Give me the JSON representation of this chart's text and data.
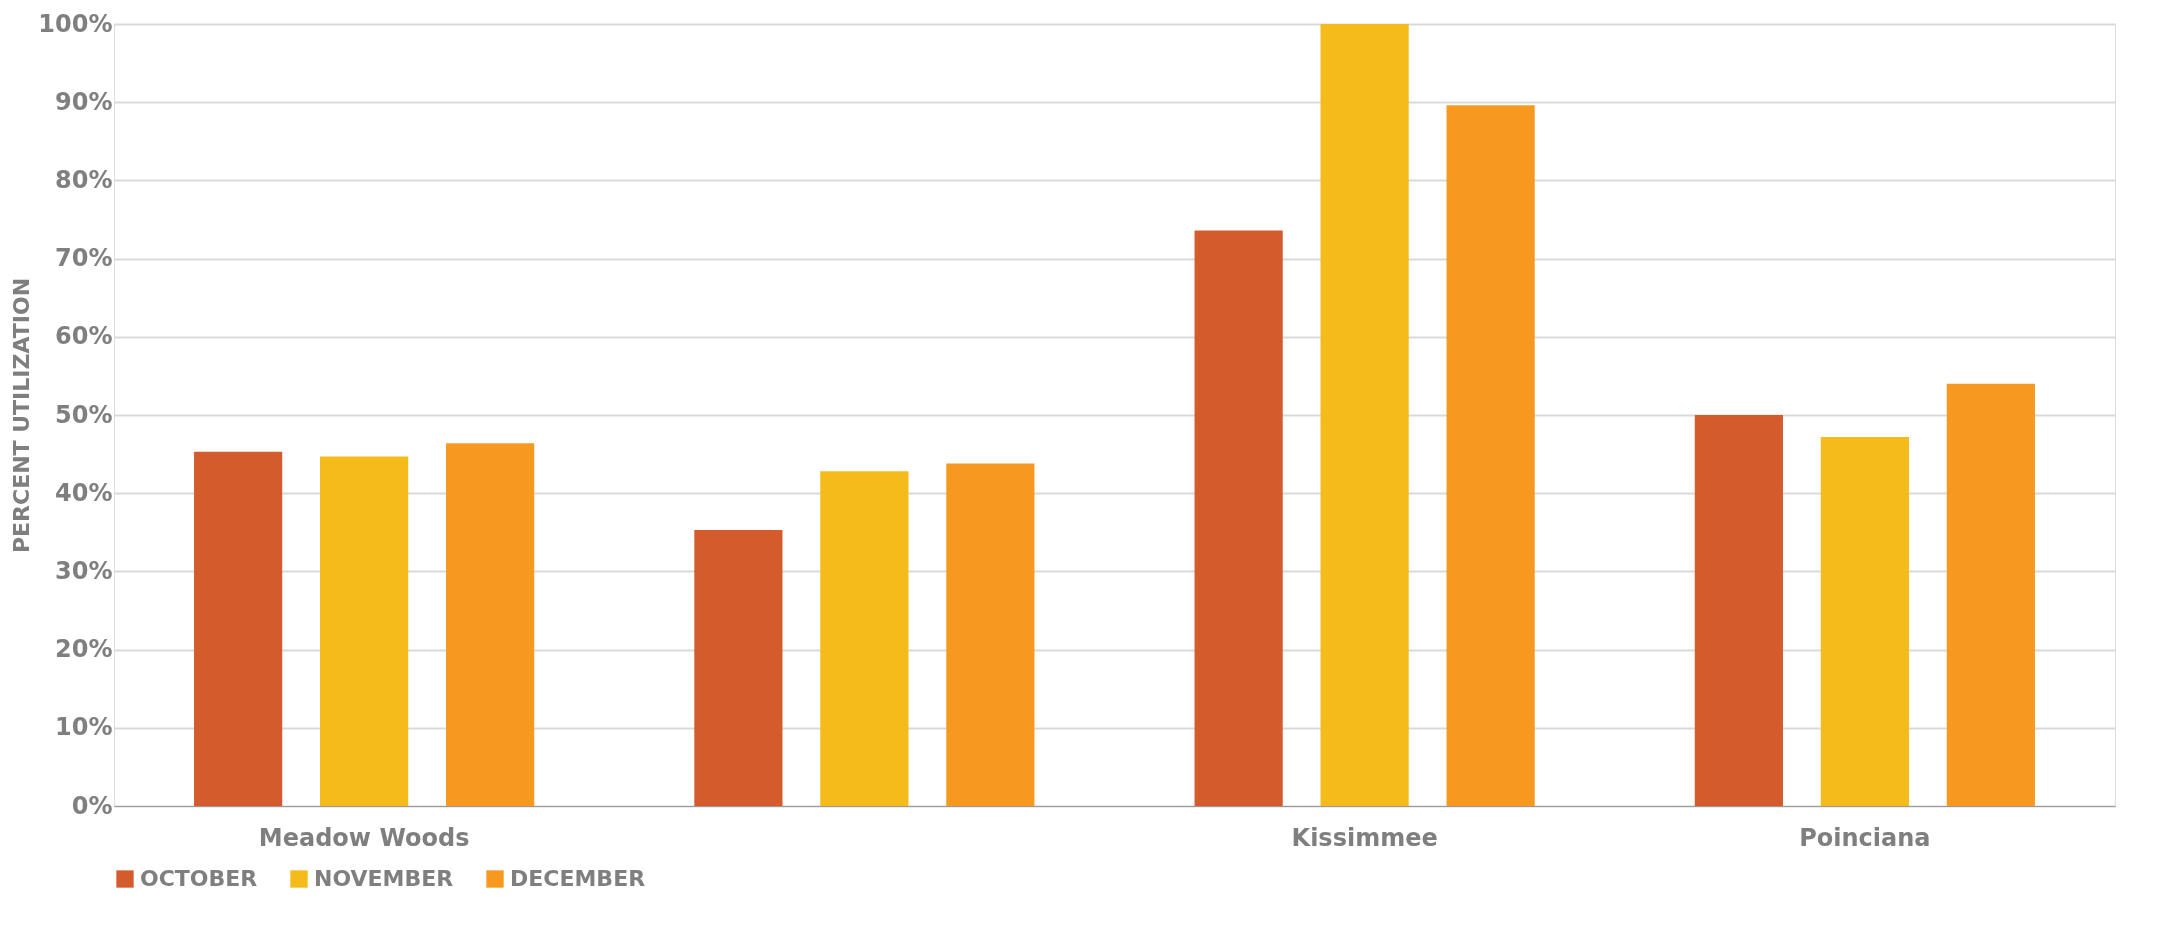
{
  "chart_data": {
    "type": "bar",
    "ylabel": "PERCENT UTILIZATION",
    "categories": [
      "Meadow Woods",
      null,
      "Kissimmee",
      "Poinciana"
    ],
    "series": [
      {
        "name": "OCTOBER",
        "color": "#d45b2c",
        "values": [
          45.3,
          35.3,
          73.6,
          50.0
        ]
      },
      {
        "name": "NOVEMBER",
        "color": "#f5bb1a",
        "values": [
          44.7,
          42.8,
          100,
          47.2
        ]
      },
      {
        "name": "DECEMBER",
        "color": "#f7981f",
        "values": [
          46.4,
          43.8,
          89.6,
          54.0
        ]
      }
    ],
    "ylim": [
      0,
      100
    ],
    "yticks": [
      {
        "value": 0,
        "label": "0%"
      },
      {
        "value": 10,
        "label": "10%"
      },
      {
        "value": 20,
        "label": "20%"
      },
      {
        "value": 30,
        "label": "30%"
      },
      {
        "value": 40,
        "label": "40%"
      },
      {
        "value": 50,
        "label": "50%"
      },
      {
        "value": 60,
        "label": "60%"
      },
      {
        "value": 70,
        "label": "70%"
      },
      {
        "value": 80,
        "label": "80%"
      },
      {
        "value": 90,
        "label": "90%"
      },
      {
        "value": 100,
        "label": "100%"
      }
    ],
    "grid": "y",
    "legend": "bottom"
  }
}
